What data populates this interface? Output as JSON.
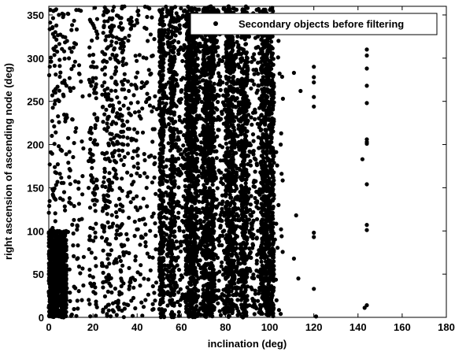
{
  "chart_data": {
    "type": "scatter",
    "title": "",
    "xlabel": "inclination (deg)",
    "ylabel": "right ascension of ascending node (deg)",
    "xlim": [
      0,
      180
    ],
    "ylim": [
      0,
      360
    ],
    "xticks": [
      0,
      20,
      40,
      60,
      80,
      100,
      120,
      140,
      160,
      180
    ],
    "yticks": [
      0,
      50,
      100,
      150,
      200,
      250,
      300,
      350
    ],
    "grid": false,
    "legend_position": "top-right",
    "marker": "filled-circle",
    "marker_color": "#000000",
    "series": [
      {
        "name": "Secondary objects before filtering",
        "dense_clusters": [
          {
            "x": [
              0,
              8
            ],
            "y": [
              0,
              100
            ],
            "count": 900
          },
          {
            "x": [
              50,
              52
            ],
            "y": [
              0,
              360
            ],
            "count": 350
          },
          {
            "x": [
              55,
              57
            ],
            "y": [
              0,
              360
            ],
            "count": 300
          },
          {
            "x": [
              62,
              67
            ],
            "y": [
              0,
              360
            ],
            "count": 900
          },
          {
            "x": [
              70,
              75
            ],
            "y": [
              0,
              360
            ],
            "count": 900
          },
          {
            "x": [
              80,
              84
            ],
            "y": [
              0,
              360
            ],
            "count": 600
          },
          {
            "x": [
              87,
              90
            ],
            "y": [
              0,
              360
            ],
            "count": 450
          },
          {
            "x": [
              96,
              102
            ],
            "y": [
              0,
              360
            ],
            "count": 900
          }
        ],
        "sparse_bands": [
          {
            "x": [
              0,
              8
            ],
            "y": [
              100,
              360
            ],
            "count": 110
          },
          {
            "x": [
              8,
              16
            ],
            "y": [
              0,
              360
            ],
            "count": 90
          },
          {
            "x": [
              18,
              22
            ],
            "y": [
              0,
              360
            ],
            "count": 110
          },
          {
            "x": [
              24,
              34
            ],
            "y": [
              0,
              360
            ],
            "count": 330
          },
          {
            "x": [
              34,
              40
            ],
            "y": [
              0,
              360
            ],
            "count": 90
          },
          {
            "x": [
              40,
              49
            ],
            "y": [
              0,
              360
            ],
            "count": 110
          },
          {
            "x": [
              52,
              55
            ],
            "y": [
              0,
              360
            ],
            "count": 130
          },
          {
            "x": [
              57,
              62
            ],
            "y": [
              0,
              360
            ],
            "count": 160
          },
          {
            "x": [
              67,
              70
            ],
            "y": [
              0,
              360
            ],
            "count": 150
          },
          {
            "x": [
              75,
              80
            ],
            "y": [
              0,
              360
            ],
            "count": 160
          },
          {
            "x": [
              84,
              87
            ],
            "y": [
              0,
              360
            ],
            "count": 160
          },
          {
            "x": [
              90,
              96
            ],
            "y": [
              0,
              360
            ],
            "count": 180
          },
          {
            "x": [
              102,
              106
            ],
            "y": [
              0,
              360
            ],
            "count": 18
          }
        ],
        "points": [
          [
            105,
            4
          ],
          [
            106,
            253
          ],
          [
            105,
            200
          ],
          [
            104,
            130
          ],
          [
            104,
            320
          ],
          [
            111,
            283
          ],
          [
            111,
            68
          ],
          [
            112,
            118
          ],
          [
            113,
            45
          ],
          [
            114,
            262
          ],
          [
            120,
            290
          ],
          [
            120,
            278
          ],
          [
            120,
            272
          ],
          [
            120,
            255
          ],
          [
            120,
            244
          ],
          [
            120,
            98
          ],
          [
            120,
            93
          ],
          [
            120,
            33
          ],
          [
            121,
            1
          ],
          [
            142,
            183
          ],
          [
            143,
            11
          ],
          [
            144,
            310
          ],
          [
            144,
            303
          ],
          [
            144,
            288
          ],
          [
            144,
            268
          ],
          [
            144,
            248
          ],
          [
            144,
            206
          ],
          [
            144,
            203
          ],
          [
            144,
            201
          ],
          [
            144,
            154
          ],
          [
            144,
            107
          ],
          [
            144,
            101
          ],
          [
            144,
            14
          ]
        ]
      }
    ]
  }
}
